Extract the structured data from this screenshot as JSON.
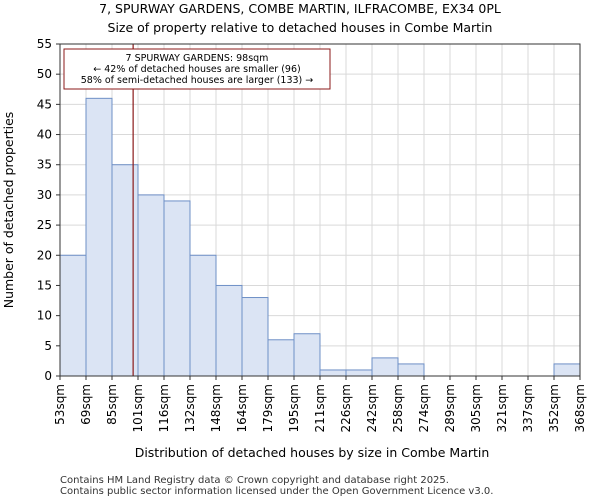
{
  "chart_data": {
    "type": "bar",
    "title": "7, SPURWAY GARDENS, COMBE MARTIN, ILFRACOMBE, EX34 0PL",
    "subtitle": "Size of property relative to detached houses in Combe Martin",
    "xlabel": "Distribution of detached houses by size in Combe Martin",
    "ylabel": "Number of detached properties",
    "bin_edges": [
      53,
      69,
      85,
      101,
      116,
      132,
      148,
      164,
      179,
      195,
      211,
      226,
      242,
      258,
      274,
      289,
      305,
      321,
      337,
      352,
      368
    ],
    "tick_labels": [
      "53sqm",
      "69sqm",
      "85sqm",
      "101sqm",
      "116sqm",
      "132sqm",
      "148sqm",
      "164sqm",
      "179sqm",
      "195sqm",
      "211sqm",
      "226sqm",
      "242sqm",
      "258sqm",
      "274sqm",
      "289sqm",
      "305sqm",
      "321sqm",
      "337sqm",
      "352sqm",
      "368sqm"
    ],
    "values": [
      20,
      46,
      35,
      30,
      29,
      20,
      15,
      13,
      6,
      7,
      1,
      1,
      3,
      2,
      0,
      0,
      0,
      0,
      0,
      2
    ],
    "ylim": [
      0,
      55
    ],
    "yticks": [
      0,
      5,
      10,
      15,
      20,
      25,
      30,
      35,
      40,
      45,
      50,
      55
    ],
    "grid": true,
    "bar_color": "#dbe4f4",
    "bar_edge_color": "#6e8fc6",
    "marker": {
      "value": 98,
      "color": "#8b1a1a"
    },
    "annotation": {
      "lines": [
        "7 SPURWAY GARDENS: 98sqm",
        "← 42% of detached houses are smaller (96)",
        "58% of semi-detached houses are larger (133) →"
      ],
      "border_color": "#8b1a1a"
    }
  },
  "footer": {
    "line1": "Contains HM Land Registry data © Crown copyright and database right 2025.",
    "line2": "Contains public sector information licensed under the Open Government Licence v3.0."
  }
}
